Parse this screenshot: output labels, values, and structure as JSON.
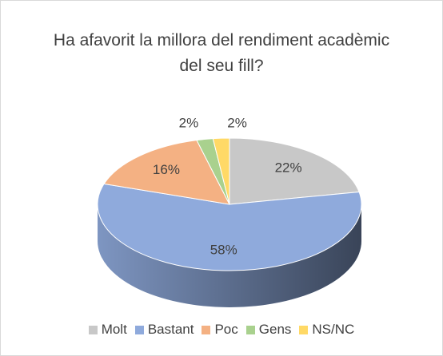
{
  "chart_data": {
    "type": "pie3d",
    "title": "Ha afavorit la millora del rendiment acadèmic del seu fill?",
    "categories": [
      "Molt",
      "Bastant",
      "Poc",
      "Gens",
      "NS/NC"
    ],
    "values": [
      22,
      58,
      16,
      2,
      2
    ],
    "value_labels": [
      "22%",
      "58%",
      "16%",
      "2%",
      "2%"
    ],
    "colors": [
      "#c8c8c8",
      "#8faadc",
      "#f4b183",
      "#a9d18e",
      "#ffd966"
    ],
    "legend": "bottom"
  }
}
